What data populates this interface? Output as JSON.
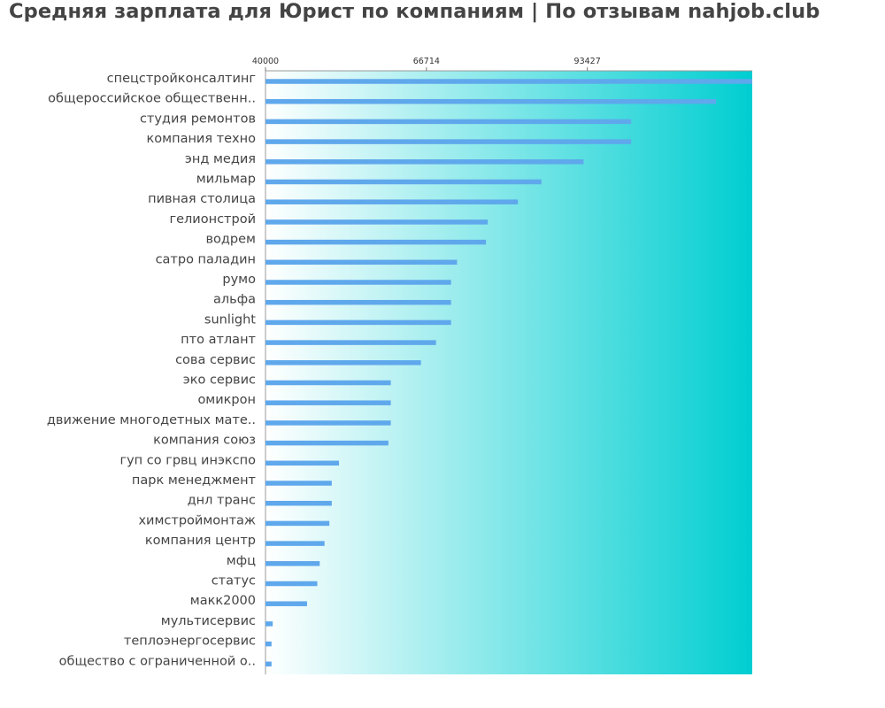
{
  "chart_data": {
    "type": "bar",
    "orientation": "horizontal",
    "title": "Средняя зарплата для Юрист по компаниям  | По отзывам nahjob.club",
    "xlabel": "",
    "ylabel": "",
    "xticks": [
      "40000",
      "66714",
      "93427"
    ],
    "xlim": [
      40000,
      120800
    ],
    "grid": false,
    "bar_color": "#5fa8ec",
    "background_gradient": [
      "#ffffff",
      "#00ced1"
    ],
    "categories": [
      "спецстройконсалтинг",
      "общероссийское общественн..",
      "студия ремонтов",
      "компания техно",
      "энд медия",
      "мильмар",
      "пивная столица",
      "гелионстрой",
      "водрем",
      "сатро паладин",
      "румо",
      "альфа",
      "sunlight",
      "пто атлант",
      "сова сервис",
      "эко сервис",
      "омикрон",
      "движение многодетных мате..",
      "компания союз",
      "гуп со грвц инэкспо",
      "парк менеджмент",
      "днл транс",
      "химстроймонтаж",
      "компания центр",
      "мфц",
      "статус",
      "макк2000",
      "мультисервис",
      "теплоэнергосервис",
      "общество с ограниченной о.."
    ],
    "values": [
      120800,
      114800,
      100700,
      100700,
      92800,
      85800,
      81900,
      76900,
      76600,
      71800,
      70800,
      70800,
      70800,
      68300,
      65800,
      60800,
      60800,
      60800,
      60400,
      52200,
      51000,
      51000,
      50600,
      49800,
      49000,
      48600,
      46900,
      41200,
      41000,
      41000
    ]
  }
}
